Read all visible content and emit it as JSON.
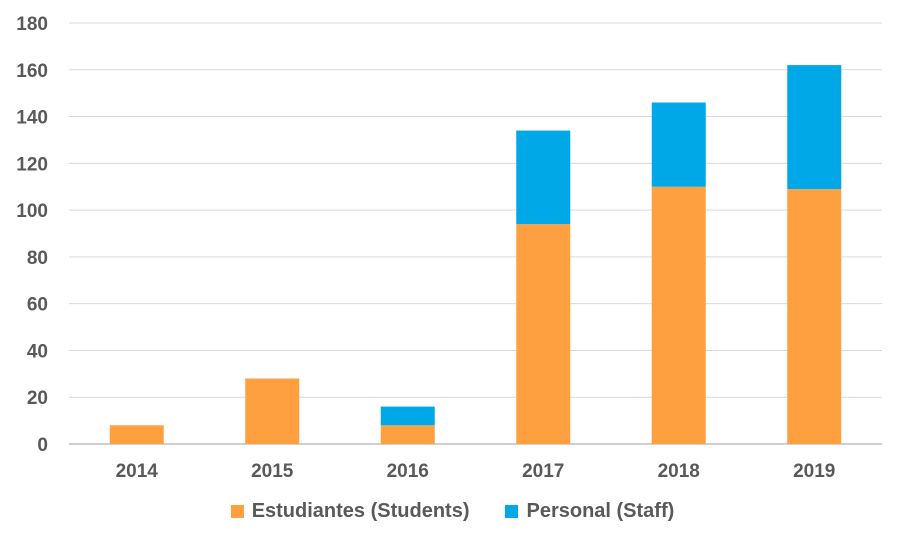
{
  "chart_data": {
    "type": "bar",
    "stacked": true,
    "categories": [
      "2014",
      "2015",
      "2016",
      "2017",
      "2018",
      "2019"
    ],
    "series": [
      {
        "name": "Estudiantes (Students)",
        "color": "#FFA040",
        "values": [
          8,
          28,
          8,
          94,
          110,
          109
        ]
      },
      {
        "name": "Personal (Staff)",
        "color": "#00A8E8",
        "values": [
          0,
          0,
          8,
          40,
          36,
          53
        ]
      }
    ],
    "title": "",
    "xlabel": "",
    "ylabel": "",
    "ylim": [
      0,
      180
    ],
    "yticks": [
      0,
      20,
      40,
      60,
      80,
      100,
      120,
      140,
      160,
      180
    ],
    "grid": true,
    "legend_position": "bottom"
  }
}
